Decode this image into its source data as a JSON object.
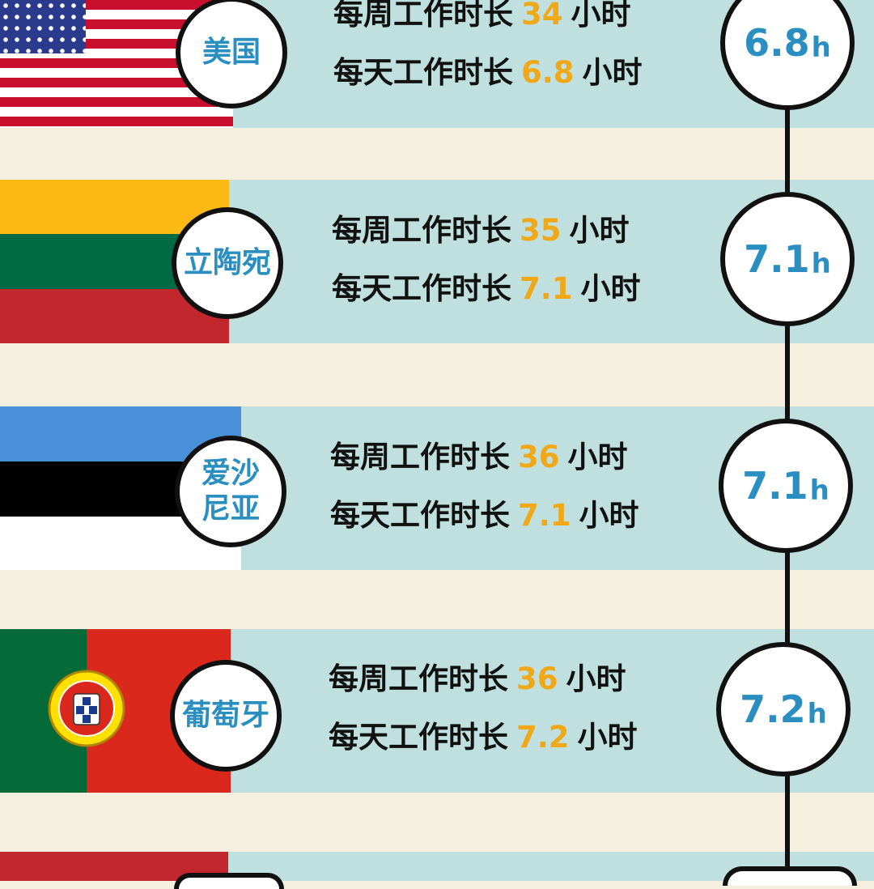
{
  "labels": {
    "weekly": "每周工作时长",
    "daily": "每天工作时长",
    "unit": "小时",
    "h_unit": "h"
  },
  "countries": [
    {
      "name": "美国",
      "weekly": "34",
      "daily": "6.8",
      "badge": "6.8"
    },
    {
      "name": "立陶宛",
      "weekly": "35",
      "daily": "7.1",
      "badge": "7.1"
    },
    {
      "name": "爱沙尼亚",
      "name_line1": "爱沙",
      "name_line2": "尼亚",
      "weekly": "36",
      "daily": "7.1",
      "badge": "7.1"
    },
    {
      "name": "葡萄牙",
      "weekly": "36",
      "daily": "7.2",
      "badge": "7.2"
    }
  ],
  "colors": {
    "band": "#bfe0df",
    "background": "#f5efdf",
    "accent_blue": "#2a8fc0",
    "accent_orange": "#f0a818"
  }
}
